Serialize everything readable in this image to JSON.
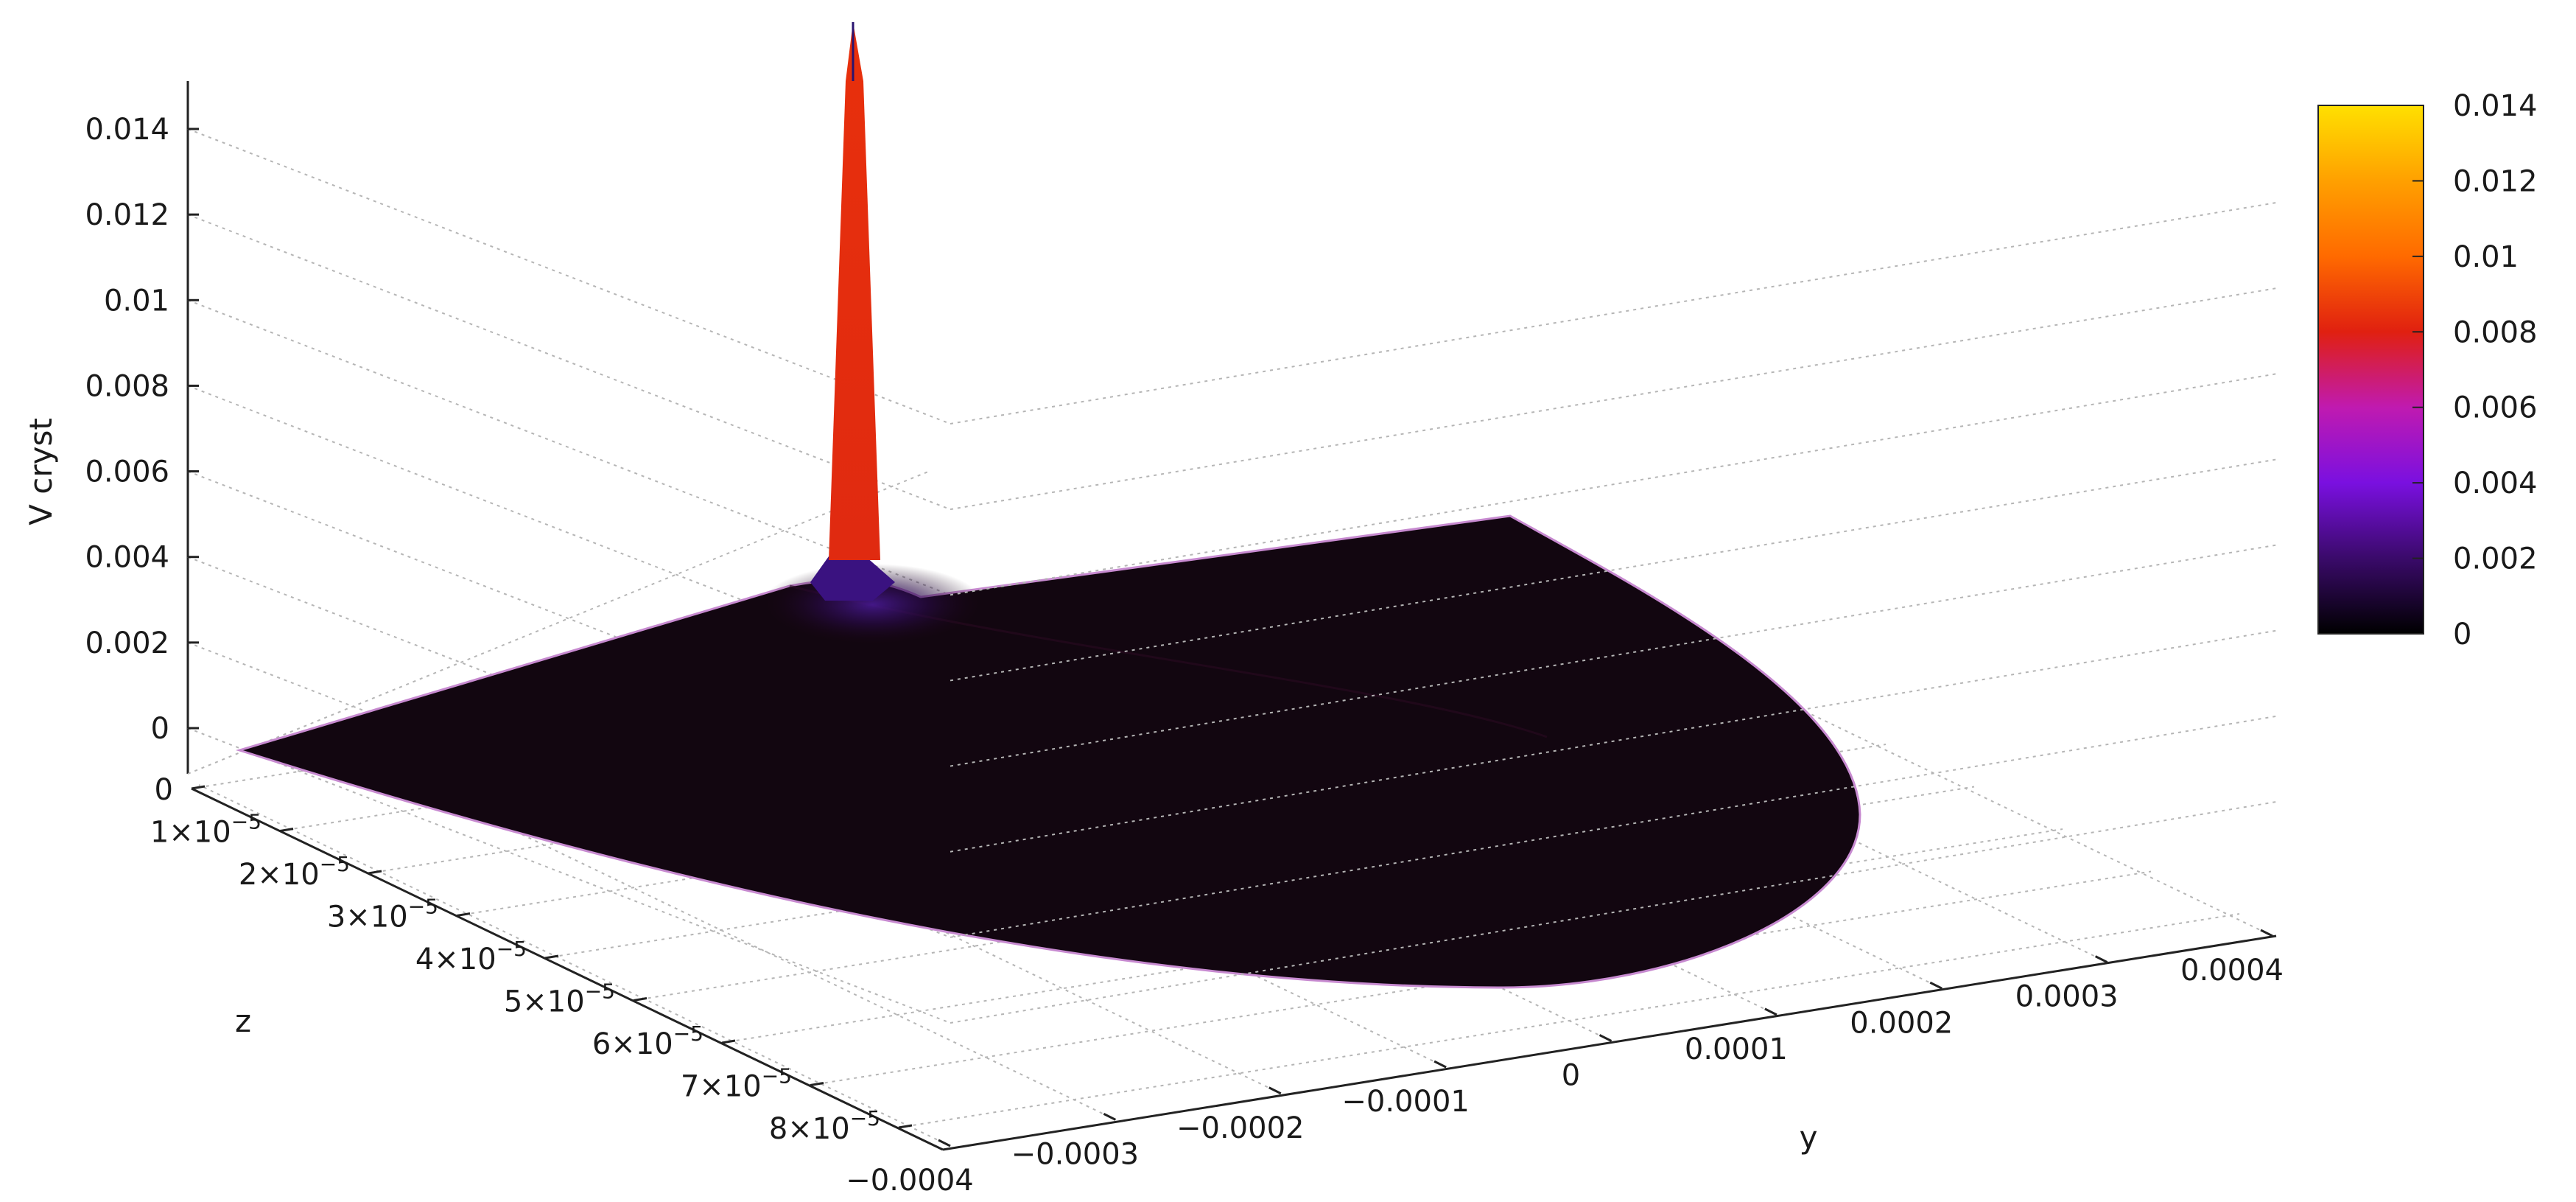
{
  "chart_data": {
    "type": "surface3d",
    "zlabel": "V cryst",
    "xlabel": "y",
    "ylabel": "z",
    "z_axis_ticks": [
      "0.014",
      "0.012",
      "0.01",
      "0.008",
      "0.006",
      "0.004",
      "0.002",
      "0"
    ],
    "z_tick_values": [
      0.014,
      0.012,
      0.01,
      0.008,
      0.006,
      0.004,
      0.002,
      0
    ],
    "y_axis_ticks": [
      "−0.0004",
      "−0.0003",
      "−0.0002",
      "−0.0001",
      "0",
      "0.0001",
      "0.0002",
      "0.0003",
      "0.0004"
    ],
    "y_tick_values": [
      -0.0004,
      -0.0003,
      -0.0002,
      -0.0001,
      0,
      0.0001,
      0.0002,
      0.0003,
      0.0004
    ],
    "depth_axis_ticks": [
      {
        "mant": "0",
        "exp": ""
      },
      {
        "mant": "1×10",
        "exp": "−5"
      },
      {
        "mant": "2×10",
        "exp": "−5"
      },
      {
        "mant": "3×10",
        "exp": "−5"
      },
      {
        "mant": "4×10",
        "exp": "−5"
      },
      {
        "mant": "5×10",
        "exp": "−5"
      },
      {
        "mant": "6×10",
        "exp": "−5"
      },
      {
        "mant": "7×10",
        "exp": "−5"
      },
      {
        "mant": "8×10",
        "exp": "−5"
      }
    ],
    "depth_tick_values": [
      0,
      1e-05,
      2e-05,
      3e-05,
      4e-05,
      5e-05,
      6e-05,
      7e-05,
      8e-05
    ],
    "z_range": [
      0,
      0.014
    ],
    "y_range": [
      -0.0004,
      0.0004
    ],
    "depth_range": [
      0,
      8e-05
    ],
    "peak": {
      "y": 0,
      "z": 0,
      "value": 0.014
    },
    "baseline_value": 0.0002,
    "colorbar": {
      "ticks": [
        "0.014",
        "0.012",
        "0.01",
        "0.008",
        "0.006",
        "0.004",
        "0.002",
        "0"
      ],
      "tick_values": [
        0.014,
        0.012,
        0.01,
        0.008,
        0.006,
        0.004,
        0.002,
        0
      ],
      "range": [
        0,
        0.014
      ],
      "colors": [
        "#000000",
        "#3a0a6a",
        "#7a10e0",
        "#c01ab0",
        "#e02010",
        "#ff6a00",
        "#ffa000",
        "#ffe000"
      ]
    },
    "grid": true,
    "legend_position": "right"
  }
}
